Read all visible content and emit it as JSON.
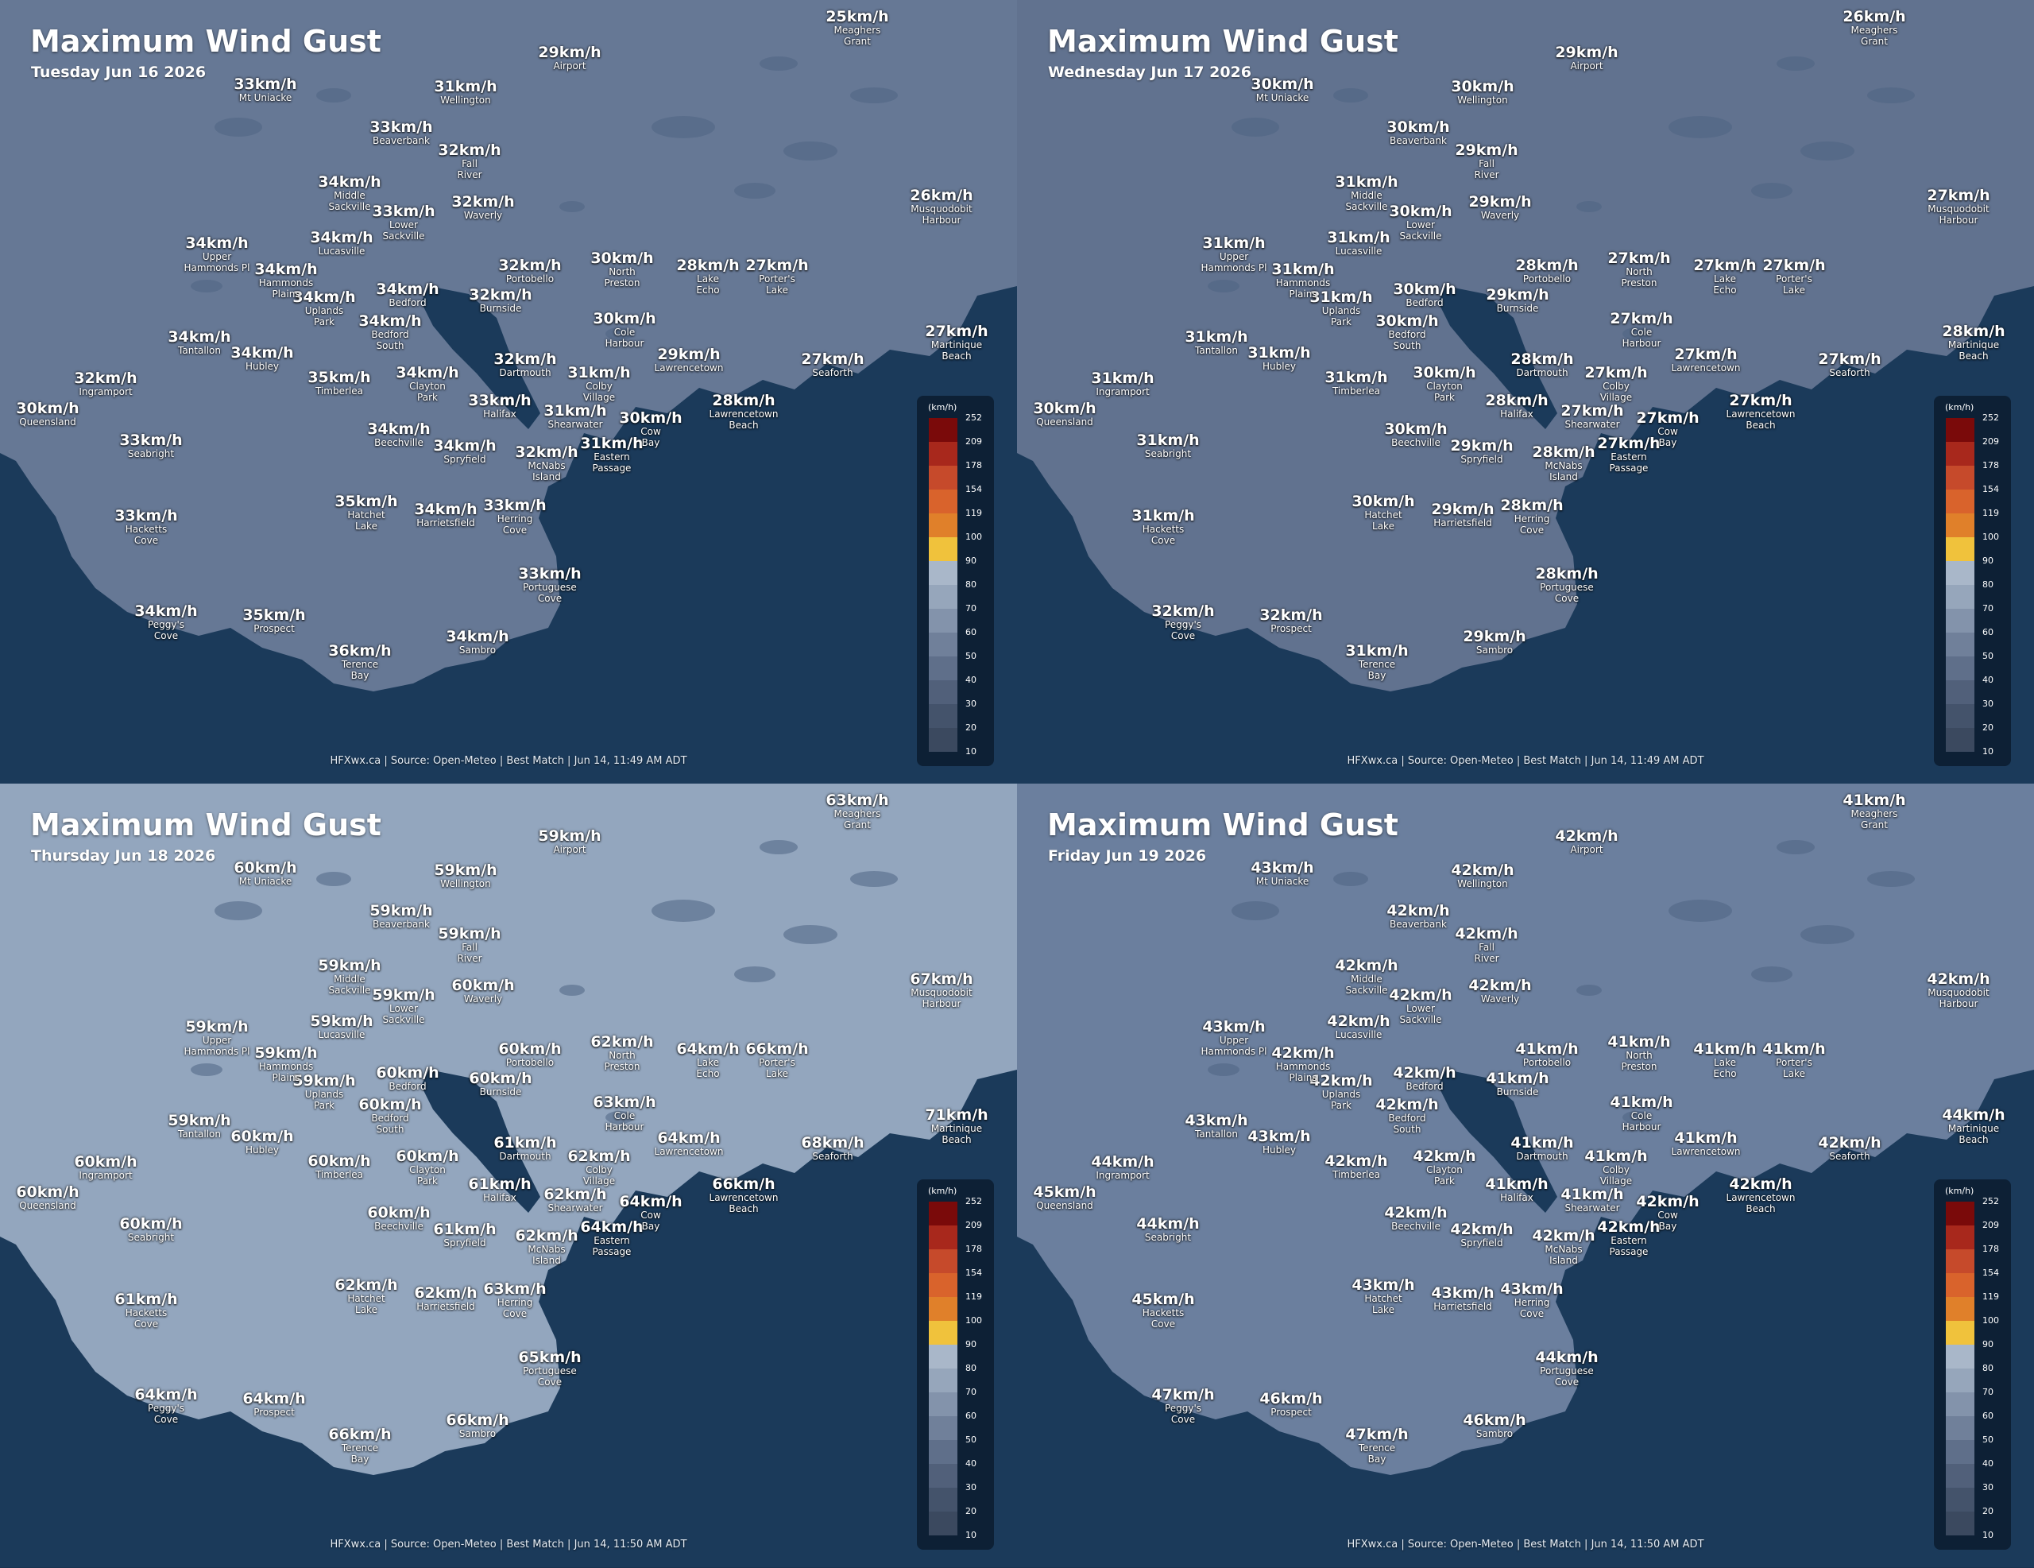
{
  "locations": [
    {
      "id": "queensland",
      "name": [
        "Queensland"
      ]
    },
    {
      "id": "ingramport",
      "name": [
        "Ingramport"
      ]
    },
    {
      "id": "seabright",
      "name": [
        "Seabright"
      ]
    },
    {
      "id": "hacketts",
      "name": [
        "Hacketts",
        "Cove"
      ]
    },
    {
      "id": "peggys",
      "name": [
        "Peggy's",
        "Cove"
      ]
    },
    {
      "id": "prospect",
      "name": [
        "Prospect"
      ]
    },
    {
      "id": "terence",
      "name": [
        "Terence",
        "Bay"
      ]
    },
    {
      "id": "sambro",
      "name": [
        "Sambro"
      ]
    },
    {
      "id": "portuguese",
      "name": [
        "Portuguese",
        "Cove"
      ]
    },
    {
      "id": "herring",
      "name": [
        "Herring",
        "Cove"
      ]
    },
    {
      "id": "harrietsfield",
      "name": [
        "Harrietsfield"
      ]
    },
    {
      "id": "hatchet",
      "name": [
        "Hatchet",
        "Lake"
      ]
    },
    {
      "id": "spryfield",
      "name": [
        "Spryfield"
      ]
    },
    {
      "id": "beechville",
      "name": [
        "Beechville"
      ]
    },
    {
      "id": "mcnabs",
      "name": [
        "McNabs",
        "Island"
      ]
    },
    {
      "id": "eastern",
      "name": [
        "Eastern",
        "Passage"
      ]
    },
    {
      "id": "cowbay",
      "name": [
        "Cow",
        "Bay"
      ]
    },
    {
      "id": "shearwater",
      "name": [
        "Shearwater"
      ]
    },
    {
      "id": "halifax",
      "name": [
        "Halifax"
      ]
    },
    {
      "id": "clayton",
      "name": [
        "Clayton",
        "Park"
      ]
    },
    {
      "id": "timberlea",
      "name": [
        "Timberlea"
      ]
    },
    {
      "id": "hubley",
      "name": [
        "Hubley"
      ]
    },
    {
      "id": "tantallon",
      "name": [
        "Tantallon"
      ]
    },
    {
      "id": "bedfordsouth",
      "name": [
        "Bedford",
        "South"
      ]
    },
    {
      "id": "uplands",
      "name": [
        "Uplands",
        "Park"
      ]
    },
    {
      "id": "hammondsplains",
      "name": [
        "Hammonds",
        "Plains"
      ]
    },
    {
      "id": "upperhammonds",
      "name": [
        "Upper",
        "Hammonds Pl"
      ]
    },
    {
      "id": "lucasville",
      "name": [
        "Lucasville"
      ]
    },
    {
      "id": "middlesack",
      "name": [
        "Middle",
        "Sackville"
      ]
    },
    {
      "id": "lowersack",
      "name": [
        "Lower",
        "Sackville"
      ]
    },
    {
      "id": "bedford",
      "name": [
        "Bedford"
      ]
    },
    {
      "id": "burnside",
      "name": [
        "Burnside"
      ]
    },
    {
      "id": "portobello",
      "name": [
        "Portobello"
      ]
    },
    {
      "id": "dartmouth",
      "name": [
        "Dartmouth"
      ]
    },
    {
      "id": "colby",
      "name": [
        "Colby",
        "Village"
      ]
    },
    {
      "id": "cole",
      "name": [
        "Cole",
        "Harbour"
      ]
    },
    {
      "id": "northpreston",
      "name": [
        "North",
        "Preston"
      ]
    },
    {
      "id": "lakeecho",
      "name": [
        "Lake",
        "Echo"
      ]
    },
    {
      "id": "porters",
      "name": [
        "Porter's",
        "Lake"
      ]
    },
    {
      "id": "lawrencetown",
      "name": [
        "Lawrencetown"
      ]
    },
    {
      "id": "lawrencetownbeach",
      "name": [
        "Lawrencetown",
        "Beach"
      ]
    },
    {
      "id": "seaforth",
      "name": [
        "Seaforth"
      ]
    },
    {
      "id": "martinique",
      "name": [
        "Martinique",
        "Beach"
      ]
    },
    {
      "id": "musquodobit",
      "name": [
        "Musquodobit",
        "Harbour"
      ]
    },
    {
      "id": "meaghers",
      "name": [
        "Meaghers",
        "Grant"
      ]
    },
    {
      "id": "airport",
      "name": [
        "Airport"
      ]
    },
    {
      "id": "wellington",
      "name": [
        "Wellington"
      ]
    },
    {
      "id": "mtuniacke",
      "name": [
        "Mt Uniacke"
      ]
    },
    {
      "id": "beaverbank",
      "name": [
        "Beaverbank"
      ]
    },
    {
      "id": "fallriver",
      "name": [
        "Fall",
        "River"
      ]
    },
    {
      "id": "waverly",
      "name": [
        "Waverly"
      ]
    }
  ],
  "legend": {
    "unit": "(km/h)",
    "ticks": [
      "252",
      "209",
      "178",
      "154",
      "119",
      "100",
      "90",
      "80",
      "70",
      "60",
      "50",
      "40",
      "30",
      "20",
      "10"
    ],
    "colors": [
      "#7a0a0a",
      "#a8281c",
      "#c64a2b",
      "#d9632c",
      "#e0802a",
      "#f0c23c",
      "#a9b7c9",
      "#96a6bb",
      "#8393ab",
      "#70809a",
      "#5f6f8a",
      "#51607a",
      "#44536b",
      "#3b495f",
      "#364356"
    ]
  },
  "panels": [
    {
      "title": "Maximum Wind Gust",
      "date": "Tuesday Jun 16 2026",
      "credit": "HFXwx.ca | Source: Open-Meteo | Best Match | Jun 14, 11:49 AM ADT",
      "land_color": "#667895",
      "values": {
        "queensland": "30km/h",
        "ingramport": "32km/h",
        "seabright": "33km/h",
        "hacketts": "33km/h",
        "peggys": "34km/h",
        "prospect": "35km/h",
        "terence": "36km/h",
        "sambro": "34km/h",
        "portuguese": "33km/h",
        "herring": "33km/h",
        "harrietsfield": "34km/h",
        "hatchet": "35km/h",
        "spryfield": "34km/h",
        "beechville": "34km/h",
        "mcnabs": "32km/h",
        "eastern": "31km/h",
        "cowbay": "30km/h",
        "shearwater": "31km/h",
        "halifax": "33km/h",
        "clayton": "34km/h",
        "timberlea": "35km/h",
        "hubley": "34km/h",
        "tantallon": "34km/h",
        "bedfordsouth": "34km/h",
        "uplands": "34km/h",
        "hammondsplains": "34km/h",
        "upperhammonds": "34km/h",
        "lucasville": "34km/h",
        "middlesack": "34km/h",
        "lowersack": "33km/h",
        "bedford": "34km/h",
        "burnside": "32km/h",
        "portobello": "32km/h",
        "dartmouth": "32km/h",
        "colby": "31km/h",
        "cole": "30km/h",
        "northpreston": "30km/h",
        "lakeecho": "28km/h",
        "porters": "27km/h",
        "lawrencetown": "29km/h",
        "lawrencetownbeach": "28km/h",
        "seaforth": "27km/h",
        "martinique": "27km/h",
        "musquodobit": "26km/h",
        "meaghers": "25km/h",
        "airport": "29km/h",
        "wellington": "31km/h",
        "mtuniacke": "33km/h",
        "beaverbank": "33km/h",
        "fallriver": "32km/h",
        "waverly": "32km/h"
      }
    },
    {
      "title": "Maximum Wind Gust",
      "date": "Wednesday Jun 17 2026",
      "credit": "HFXwx.ca | Source: Open-Meteo | Best Match | Jun 14, 11:49 AM ADT",
      "land_color": "#61728f",
      "values": {
        "queensland": "30km/h",
        "ingramport": "31km/h",
        "seabright": "31km/h",
        "hacketts": "31km/h",
        "peggys": "32km/h",
        "prospect": "32km/h",
        "terence": "31km/h",
        "sambro": "29km/h",
        "portuguese": "28km/h",
        "herring": "28km/h",
        "harrietsfield": "29km/h",
        "hatchet": "30km/h",
        "spryfield": "29km/h",
        "beechville": "30km/h",
        "mcnabs": "28km/h",
        "eastern": "27km/h",
        "cowbay": "27km/h",
        "shearwater": "27km/h",
        "halifax": "28km/h",
        "clayton": "30km/h",
        "timberlea": "31km/h",
        "hubley": "31km/h",
        "tantallon": "31km/h",
        "bedfordsouth": "30km/h",
        "uplands": "31km/h",
        "hammondsplains": "31km/h",
        "upperhammonds": "31km/h",
        "lucasville": "31km/h",
        "middlesack": "31km/h",
        "lowersack": "30km/h",
        "bedford": "30km/h",
        "burnside": "29km/h",
        "portobello": "28km/h",
        "dartmouth": "28km/h",
        "colby": "27km/h",
        "cole": "27km/h",
        "northpreston": "27km/h",
        "lakeecho": "27km/h",
        "porters": "27km/h",
        "lawrencetown": "27km/h",
        "lawrencetownbeach": "27km/h",
        "seaforth": "27km/h",
        "martinique": "28km/h",
        "musquodobit": "27km/h",
        "meaghers": "26km/h",
        "airport": "29km/h",
        "wellington": "30km/h",
        "mtuniacke": "30km/h",
        "beaverbank": "30km/h",
        "fallriver": "29km/h",
        "waverly": "29km/h"
      }
    },
    {
      "title": "Maximum Wind Gust",
      "date": "Thursday Jun 18 2026",
      "credit": "HFXwx.ca | Source: Open-Meteo | Best Match | Jun 14, 11:50 AM ADT",
      "land_color": "#93a6be",
      "values": {
        "queensland": "60km/h",
        "ingramport": "60km/h",
        "seabright": "60km/h",
        "hacketts": "61km/h",
        "peggys": "64km/h",
        "prospect": "64km/h",
        "terence": "66km/h",
        "sambro": "66km/h",
        "portuguese": "65km/h",
        "herring": "63km/h",
        "harrietsfield": "62km/h",
        "hatchet": "62km/h",
        "spryfield": "61km/h",
        "beechville": "60km/h",
        "mcnabs": "62km/h",
        "eastern": "64km/h",
        "cowbay": "64km/h",
        "shearwater": "62km/h",
        "halifax": "61km/h",
        "clayton": "60km/h",
        "timberlea": "60km/h",
        "hubley": "60km/h",
        "tantallon": "59km/h",
        "bedfordsouth": "60km/h",
        "uplands": "59km/h",
        "hammondsplains": "59km/h",
        "upperhammonds": "59km/h",
        "lucasville": "59km/h",
        "middlesack": "59km/h",
        "lowersack": "59km/h",
        "bedford": "60km/h",
        "burnside": "60km/h",
        "portobello": "60km/h",
        "dartmouth": "61km/h",
        "colby": "62km/h",
        "cole": "63km/h",
        "northpreston": "62km/h",
        "lakeecho": "64km/h",
        "porters": "66km/h",
        "lawrencetown": "64km/h",
        "lawrencetownbeach": "66km/h",
        "seaforth": "68km/h",
        "martinique": "71km/h",
        "musquodobit": "67km/h",
        "meaghers": "63km/h",
        "airport": "59km/h",
        "wellington": "59km/h",
        "mtuniacke": "60km/h",
        "beaverbank": "59km/h",
        "fallriver": "59km/h",
        "waverly": "60km/h"
      }
    },
    {
      "title": "Maximum Wind Gust",
      "date": "Friday Jun 19 2026",
      "credit": "HFXwx.ca | Source: Open-Meteo | Best Match | Jun 14, 11:50 AM ADT",
      "land_color": "#6b7f9e",
      "values": {
        "queensland": "45km/h",
        "ingramport": "44km/h",
        "seabright": "44km/h",
        "hacketts": "45km/h",
        "peggys": "47km/h",
        "prospect": "46km/h",
        "terence": "47km/h",
        "sambro": "46km/h",
        "portuguese": "44km/h",
        "herring": "43km/h",
        "harrietsfield": "43km/h",
        "hatchet": "43km/h",
        "spryfield": "42km/h",
        "beechville": "42km/h",
        "mcnabs": "42km/h",
        "eastern": "42km/h",
        "cowbay": "42km/h",
        "shearwater": "41km/h",
        "halifax": "41km/h",
        "clayton": "42km/h",
        "timberlea": "42km/h",
        "hubley": "43km/h",
        "tantallon": "43km/h",
        "bedfordsouth": "42km/h",
        "uplands": "42km/h",
        "hammondsplains": "42km/h",
        "upperhammonds": "43km/h",
        "lucasville": "42km/h",
        "middlesack": "42km/h",
        "lowersack": "42km/h",
        "bedford": "42km/h",
        "burnside": "41km/h",
        "portobello": "41km/h",
        "dartmouth": "41km/h",
        "colby": "41km/h",
        "cole": "41km/h",
        "northpreston": "41km/h",
        "lakeecho": "41km/h",
        "porters": "41km/h",
        "lawrencetown": "41km/h",
        "lawrencetownbeach": "42km/h",
        "seaforth": "42km/h",
        "martinique": "44km/h",
        "musquodobit": "42km/h",
        "meaghers": "41km/h",
        "airport": "42km/h",
        "wellington": "42km/h",
        "mtuniacke": "43km/h",
        "beaverbank": "42km/h",
        "fallriver": "42km/h",
        "waverly": "42km/h"
      }
    }
  ]
}
